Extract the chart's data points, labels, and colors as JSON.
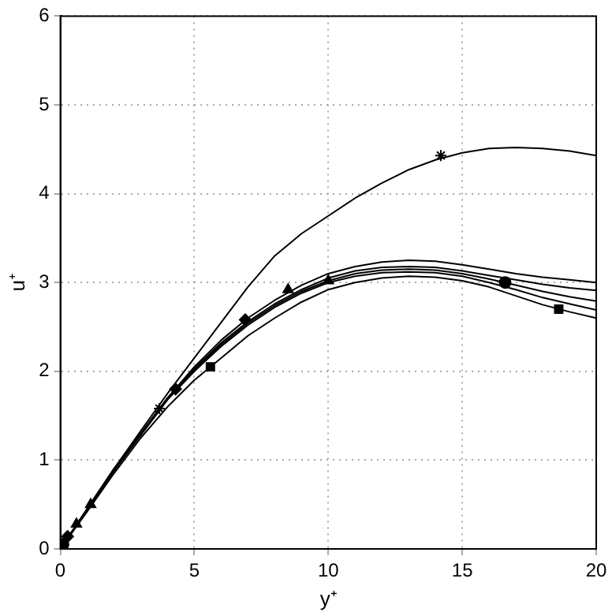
{
  "chart_data": {
    "type": "line",
    "xlabel": "y⁺",
    "ylabel": "u⁺",
    "xlim": [
      0,
      20
    ],
    "ylim": [
      0,
      6
    ],
    "xticks": [
      0,
      5,
      10,
      15,
      20
    ],
    "yticks": [
      0,
      1,
      2,
      3,
      4,
      5,
      6
    ],
    "grid": true,
    "legend": false,
    "marker": "none",
    "line_style": "solid",
    "x": [
      0,
      1,
      2,
      3,
      4,
      5,
      6,
      7,
      8,
      9,
      10,
      11,
      12,
      13,
      14,
      15,
      16,
      17,
      18,
      19,
      20
    ],
    "series": [
      {
        "color": "#000000",
        "values": [
          0,
          0.45,
          0.9,
          1.33,
          1.75,
          2.15,
          2.55,
          2.95,
          3.3,
          3.55,
          3.75,
          3.95,
          4.12,
          4.27,
          4.38,
          4.46,
          4.51,
          4.52,
          4.51,
          4.48,
          4.43
        ]
      },
      {
        "color": "#000000",
        "values": [
          0,
          0.45,
          0.9,
          1.3,
          1.7,
          2.05,
          2.35,
          2.6,
          2.8,
          2.97,
          3.1,
          3.18,
          3.23,
          3.25,
          3.24,
          3.2,
          3.15,
          3.1,
          3.06,
          3.03,
          3.0
        ]
      },
      {
        "color": "#000000",
        "values": [
          0,
          0.45,
          0.9,
          1.3,
          1.7,
          2.03,
          2.32,
          2.56,
          2.76,
          2.92,
          3.05,
          3.13,
          3.17,
          3.18,
          3.17,
          3.13,
          3.08,
          3.03,
          2.98,
          2.94,
          2.91
        ]
      },
      {
        "color": "#000000",
        "values": [
          0,
          0.44,
          0.88,
          1.29,
          1.69,
          2.02,
          2.3,
          2.54,
          2.74,
          2.9,
          3.02,
          3.1,
          3.14,
          3.15,
          3.14,
          3.1,
          3.04,
          2.97,
          2.9,
          2.84,
          2.79
        ]
      },
      {
        "color": "#000000",
        "values": [
          0,
          0.44,
          0.88,
          1.28,
          1.68,
          2.0,
          2.28,
          2.52,
          2.72,
          2.88,
          3.0,
          3.07,
          3.11,
          3.12,
          3.11,
          3.07,
          3.0,
          2.92,
          2.83,
          2.76,
          2.69
        ]
      },
      {
        "color": "#000000",
        "values": [
          0,
          0.42,
          0.85,
          1.25,
          1.6,
          1.9,
          2.15,
          2.4,
          2.6,
          2.78,
          2.92,
          3.0,
          3.05,
          3.07,
          3.06,
          3.02,
          2.95,
          2.85,
          2.75,
          2.67,
          2.6
        ]
      },
      {
        "type": "scatter",
        "marker": "cross",
        "color": "#000000",
        "x": [
          3.7,
          14.2
        ],
        "values": [
          1.58,
          4.43
        ]
      },
      {
        "type": "scatter",
        "marker": "circle",
        "color": "#000000",
        "x": [
          0.1,
          16.6
        ],
        "values": [
          0.05,
          3.0
        ]
      },
      {
        "type": "scatter",
        "marker": "square",
        "color": "#000000",
        "x": [
          5.6,
          18.6
        ],
        "values": [
          2.05,
          2.7
        ]
      },
      {
        "type": "scatter",
        "marker": "triangle",
        "color": "#000000",
        "x": [
          0.6,
          8.5
        ],
        "values": [
          0.28,
          2.92
        ]
      },
      {
        "type": "scatter",
        "marker": "diamond",
        "color": "#000000",
        "x": [
          0.27,
          4.3,
          6.9
        ],
        "values": [
          0.14,
          1.8,
          2.58
        ]
      },
      {
        "type": "scatter",
        "marker": "triangle",
        "color": "#000000",
        "x": [
          1.13,
          10
        ],
        "values": [
          0.5,
          3.02
        ]
      }
    ]
  }
}
